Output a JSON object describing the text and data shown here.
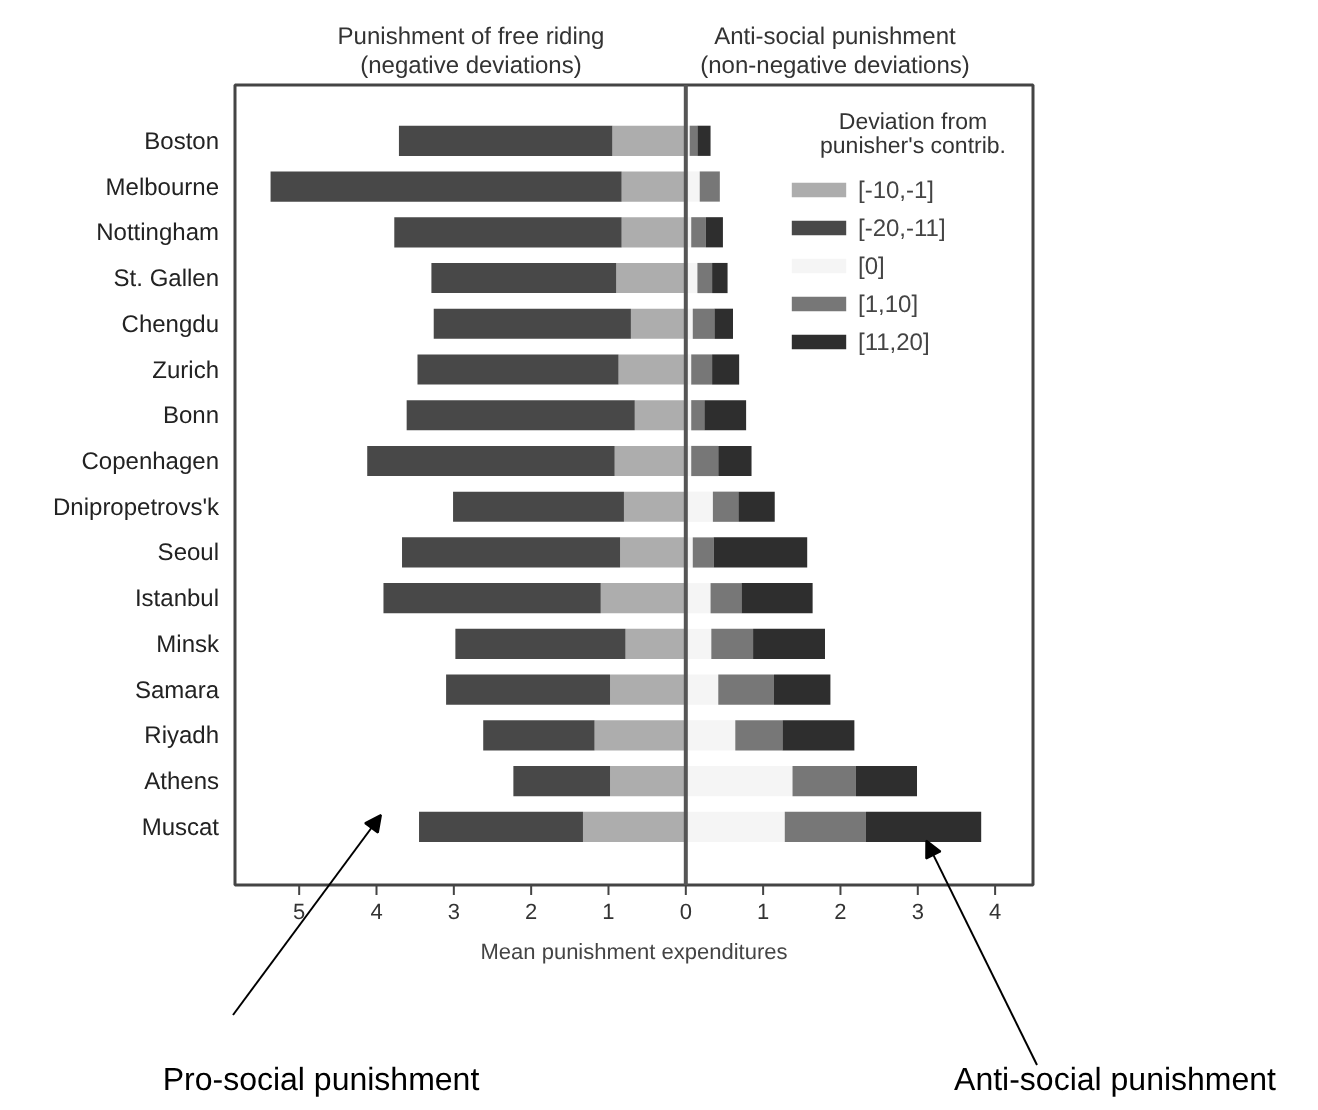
{
  "chart_data": {
    "type": "bar",
    "orientation": "horizontal",
    "stacked": true,
    "categories": [
      "Boston",
      "Melbourne",
      "Nottingham",
      "St. Gallen",
      "Chengdu",
      "Zurich",
      "Bonn",
      "Copenhagen",
      "Dnipropetrovs'k",
      "Seoul",
      "Istanbul",
      "Minsk",
      "Samara",
      "Riyadh",
      "Athens",
      "Muscat"
    ],
    "series": [
      {
        "name": "[-10,-1]",
        "color": "#adadad",
        "values": [
          -0.95,
          -0.83,
          -0.83,
          -0.9,
          -0.71,
          -0.87,
          -0.66,
          -0.92,
          -0.8,
          -0.85,
          -1.1,
          -0.78,
          -0.98,
          -1.18,
          -0.98,
          -1.33
        ]
      },
      {
        "name": "[-20,-11]",
        "color": "#484848",
        "values": [
          -2.76,
          -4.54,
          -2.94,
          -2.39,
          -2.55,
          -2.6,
          -2.95,
          -3.2,
          -2.21,
          -2.82,
          -2.81,
          -2.2,
          -2.12,
          -1.44,
          -1.25,
          -2.12
        ]
      },
      {
        "name": "[0]",
        "color": "#f5f5f5",
        "values": [
          0.05,
          0.18,
          0.07,
          0.15,
          0.09,
          0.07,
          0.07,
          0.07,
          0.35,
          0.09,
          0.32,
          0.33,
          0.42,
          0.64,
          1.38,
          1.28
        ]
      },
      {
        "name": "[1,10]",
        "color": "#777777",
        "values": [
          0.1,
          0.26,
          0.19,
          0.19,
          0.28,
          0.27,
          0.17,
          0.35,
          0.33,
          0.27,
          0.4,
          0.54,
          0.72,
          0.61,
          0.82,
          1.05
        ]
      },
      {
        "name": "[11,20]",
        "color": "#2e2e2e",
        "values": [
          0.17,
          0,
          0.22,
          0.2,
          0.24,
          0.35,
          0.54,
          0.43,
          0.47,
          1.21,
          0.92,
          0.93,
          0.73,
          0.93,
          0.79,
          1.49
        ]
      }
    ],
    "xlim": [
      -5.83,
      4.49
    ],
    "xticks": [
      {
        "value": -5,
        "label": "5"
      },
      {
        "value": -4,
        "label": "4"
      },
      {
        "value": -3,
        "label": "3"
      },
      {
        "value": -2,
        "label": "2"
      },
      {
        "value": -1,
        "label": "1"
      },
      0,
      1,
      2,
      3,
      4
    ],
    "xlabel": "Mean punishment expenditures",
    "legend_title": "Deviation from punisher's contrib.",
    "legend": "top right",
    "grid": false,
    "ref_lines": [
      {
        "axis": "x",
        "value": 0,
        "color": "#555555"
      }
    ],
    "annotations": [
      "Punishment of free riding\n(negative deviations)",
      "Anti-social punishment\n(non-negative deviations)",
      "Pro-social punishment",
      {
        "text": "Anti-social punishment",
        "x": 3.11,
        "y": "Muscat"
      }
    ]
  }
}
